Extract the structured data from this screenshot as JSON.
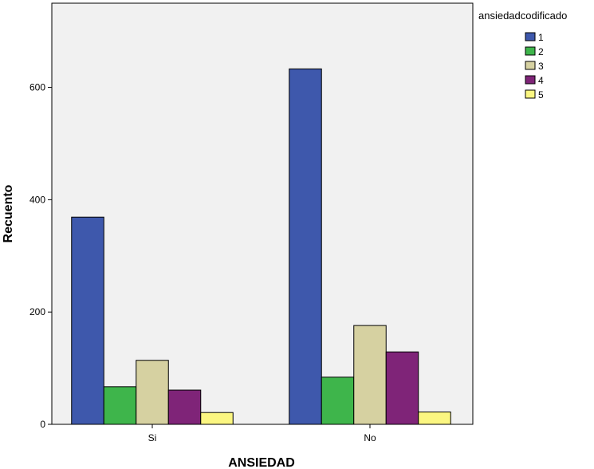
{
  "chart_data": {
    "type": "bar",
    "title": "",
    "xlabel": "ANSIEDAD",
    "ylabel": "Recuento",
    "categories": [
      "Si",
      "No"
    ],
    "ylim": [
      0,
      750
    ],
    "yticks": [
      0,
      200,
      400,
      600
    ],
    "grid": false,
    "legend": {
      "title": "ansiedadcodificado",
      "placement": "top-right"
    },
    "series": [
      {
        "name": "1",
        "values": [
          369,
          633
        ],
        "color": "#3e58ac"
      },
      {
        "name": "2",
        "values": [
          67,
          84
        ],
        "color": "#3eb54b"
      },
      {
        "name": "3",
        "values": [
          114,
          176
        ],
        "color": "#d6d1a1"
      },
      {
        "name": "4",
        "values": [
          61,
          129
        ],
        "color": "#7f2478"
      },
      {
        "name": "5",
        "values": [
          21,
          22
        ],
        "color": "#fbf681"
      }
    ],
    "colors": {
      "plot_background": "#f1f1f1",
      "axis": "#000000"
    }
  }
}
